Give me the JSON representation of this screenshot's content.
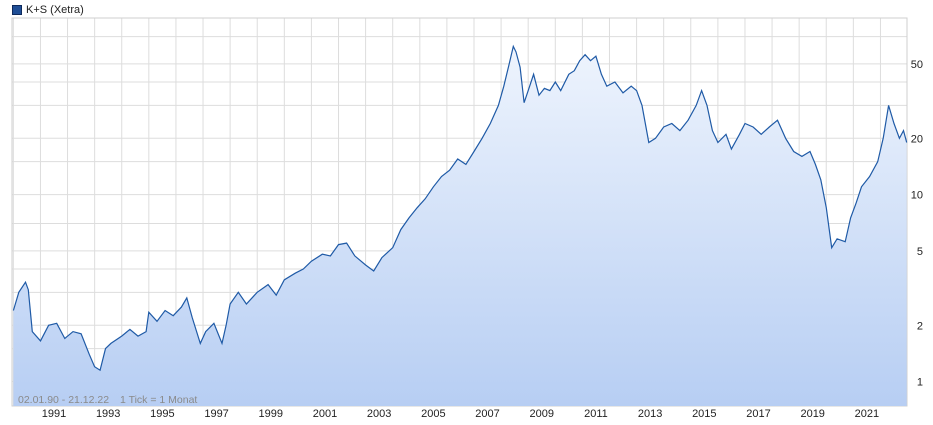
{
  "legend": {
    "label": "K+S (Xetra)"
  },
  "footnote": {
    "range": "02.01.90 - 21.12.22",
    "tick": "1 Tick = 1 Monat"
  },
  "colors": {
    "line": "#1f5aa6",
    "fill_top": "#eef4fd",
    "fill_bottom": "#b7cef3",
    "grid": "#dddddd"
  },
  "chart_data": {
    "type": "area",
    "title": "",
    "xlabel": "",
    "ylabel": "",
    "yscale": "log",
    "ylim": [
      0.74,
      88
    ],
    "xlim": [
      1989.95,
      2022.98
    ],
    "grid": true,
    "legend_position": "top-left",
    "x_ticks": [
      "1991",
      "1993",
      "1995",
      "1997",
      "1999",
      "2001",
      "2003",
      "2005",
      "2007",
      "2009",
      "2011",
      "2013",
      "2015",
      "2017",
      "2019",
      "2021"
    ],
    "y_ticks": [
      1,
      2,
      5,
      10,
      20,
      50
    ],
    "series": [
      {
        "name": "K+S (Xetra)",
        "points": [
          [
            1990.0,
            2.4
          ],
          [
            1990.2,
            3.0
          ],
          [
            1990.45,
            3.4
          ],
          [
            1990.55,
            3.1
          ],
          [
            1990.7,
            1.85
          ],
          [
            1991.0,
            1.65
          ],
          [
            1991.3,
            2.0
          ],
          [
            1991.6,
            2.05
          ],
          [
            1991.9,
            1.7
          ],
          [
            1992.2,
            1.85
          ],
          [
            1992.5,
            1.8
          ],
          [
            1992.8,
            1.4
          ],
          [
            1993.0,
            1.2
          ],
          [
            1993.2,
            1.15
          ],
          [
            1993.4,
            1.5
          ],
          [
            1993.6,
            1.6
          ],
          [
            1994.0,
            1.75
          ],
          [
            1994.3,
            1.9
          ],
          [
            1994.6,
            1.75
          ],
          [
            1994.9,
            1.85
          ],
          [
            1995.0,
            2.35
          ],
          [
            1995.3,
            2.1
          ],
          [
            1995.6,
            2.4
          ],
          [
            1995.9,
            2.25
          ],
          [
            1996.2,
            2.5
          ],
          [
            1996.4,
            2.8
          ],
          [
            1996.6,
            2.2
          ],
          [
            1996.9,
            1.6
          ],
          [
            1997.1,
            1.85
          ],
          [
            1997.4,
            2.05
          ],
          [
            1997.7,
            1.6
          ],
          [
            1997.85,
            2.0
          ],
          [
            1998.0,
            2.6
          ],
          [
            1998.3,
            3.0
          ],
          [
            1998.6,
            2.6
          ],
          [
            1999.0,
            3.0
          ],
          [
            1999.4,
            3.3
          ],
          [
            1999.7,
            2.9
          ],
          [
            2000.0,
            3.5
          ],
          [
            2000.4,
            3.8
          ],
          [
            2000.7,
            4.0
          ],
          [
            2001.0,
            4.4
          ],
          [
            2001.4,
            4.8
          ],
          [
            2001.7,
            4.7
          ],
          [
            2002.0,
            5.4
          ],
          [
            2002.3,
            5.5
          ],
          [
            2002.6,
            4.7
          ],
          [
            2003.0,
            4.2
          ],
          [
            2003.3,
            3.9
          ],
          [
            2003.6,
            4.6
          ],
          [
            2004.0,
            5.2
          ],
          [
            2004.3,
            6.5
          ],
          [
            2004.6,
            7.5
          ],
          [
            2004.9,
            8.5
          ],
          [
            2005.2,
            9.5
          ],
          [
            2005.5,
            11.0
          ],
          [
            2005.8,
            12.5
          ],
          [
            2006.1,
            13.5
          ],
          [
            2006.4,
            15.5
          ],
          [
            2006.7,
            14.5
          ],
          [
            2007.0,
            17.0
          ],
          [
            2007.3,
            20.0
          ],
          [
            2007.6,
            24.0
          ],
          [
            2007.9,
            30.0
          ],
          [
            2008.1,
            38.0
          ],
          [
            2008.3,
            50.0
          ],
          [
            2008.45,
            62.0
          ],
          [
            2008.55,
            58.0
          ],
          [
            2008.7,
            48.0
          ],
          [
            2008.85,
            31.0
          ],
          [
            2009.0,
            36.0
          ],
          [
            2009.2,
            44.0
          ],
          [
            2009.4,
            34.0
          ],
          [
            2009.6,
            37.0
          ],
          [
            2009.8,
            36.0
          ],
          [
            2010.0,
            40.0
          ],
          [
            2010.2,
            36.0
          ],
          [
            2010.5,
            44.0
          ],
          [
            2010.7,
            46.0
          ],
          [
            2010.9,
            52.0
          ],
          [
            2011.1,
            56.0
          ],
          [
            2011.3,
            52.0
          ],
          [
            2011.5,
            55.0
          ],
          [
            2011.7,
            44.0
          ],
          [
            2011.9,
            38.0
          ],
          [
            2012.2,
            40.0
          ],
          [
            2012.5,
            35.0
          ],
          [
            2012.8,
            38.0
          ],
          [
            2013.0,
            36.0
          ],
          [
            2013.2,
            30.0
          ],
          [
            2013.45,
            19.0
          ],
          [
            2013.7,
            20.0
          ],
          [
            2014.0,
            23.0
          ],
          [
            2014.3,
            24.0
          ],
          [
            2014.6,
            22.0
          ],
          [
            2014.9,
            25.0
          ],
          [
            2015.2,
            30.0
          ],
          [
            2015.4,
            36.0
          ],
          [
            2015.6,
            30.0
          ],
          [
            2015.8,
            22.0
          ],
          [
            2016.0,
            19.0
          ],
          [
            2016.3,
            21.0
          ],
          [
            2016.5,
            17.5
          ],
          [
            2016.8,
            21.0
          ],
          [
            2017.0,
            24.0
          ],
          [
            2017.3,
            23.0
          ],
          [
            2017.6,
            21.0
          ],
          [
            2017.9,
            23.0
          ],
          [
            2018.2,
            25.0
          ],
          [
            2018.5,
            20.0
          ],
          [
            2018.8,
            17.0
          ],
          [
            2019.1,
            16.0
          ],
          [
            2019.4,
            17.0
          ],
          [
            2019.6,
            14.5
          ],
          [
            2019.8,
            12.0
          ],
          [
            2020.0,
            8.5
          ],
          [
            2020.2,
            5.2
          ],
          [
            2020.4,
            5.8
          ],
          [
            2020.7,
            5.6
          ],
          [
            2020.9,
            7.5
          ],
          [
            2021.1,
            9.0
          ],
          [
            2021.3,
            11.0
          ],
          [
            2021.6,
            12.5
          ],
          [
            2021.9,
            15.0
          ],
          [
            2022.1,
            20.0
          ],
          [
            2022.3,
            30.0
          ],
          [
            2022.5,
            24.0
          ],
          [
            2022.7,
            20.0
          ],
          [
            2022.85,
            22.0
          ],
          [
            2022.97,
            19.0
          ]
        ]
      }
    ]
  }
}
